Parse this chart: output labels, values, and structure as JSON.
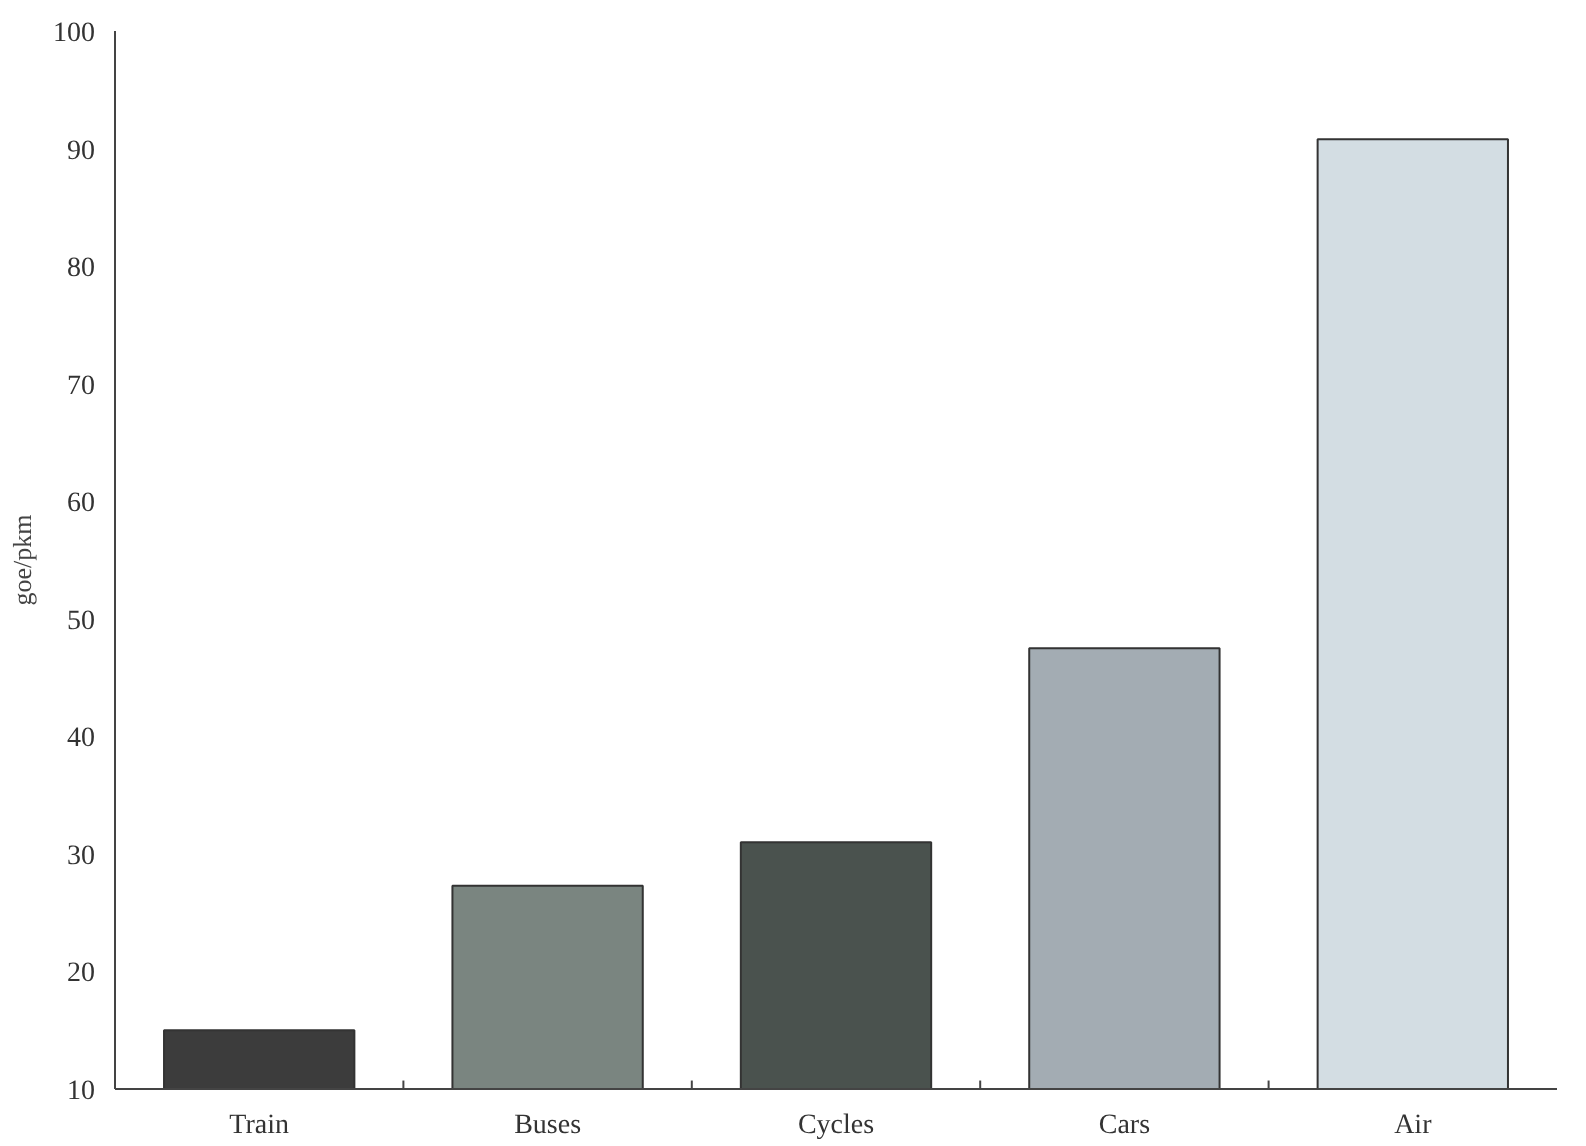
{
  "chart_data": {
    "type": "bar",
    "ylabel": "goe/pkm",
    "categories": [
      "Train",
      "Buses",
      "Cycles",
      "Cars",
      "Air"
    ],
    "values": [
      15,
      27.3,
      31,
      47.5,
      90.8
    ],
    "colors": [
      "#3c3c3c",
      "#7a8580",
      "#4a524e",
      "#a3acb3",
      "#d3dde3"
    ],
    "ylim": [
      10,
      100
    ],
    "yticks": [
      10,
      20,
      30,
      40,
      50,
      60,
      70,
      80,
      90,
      100
    ],
    "grid": false
  }
}
